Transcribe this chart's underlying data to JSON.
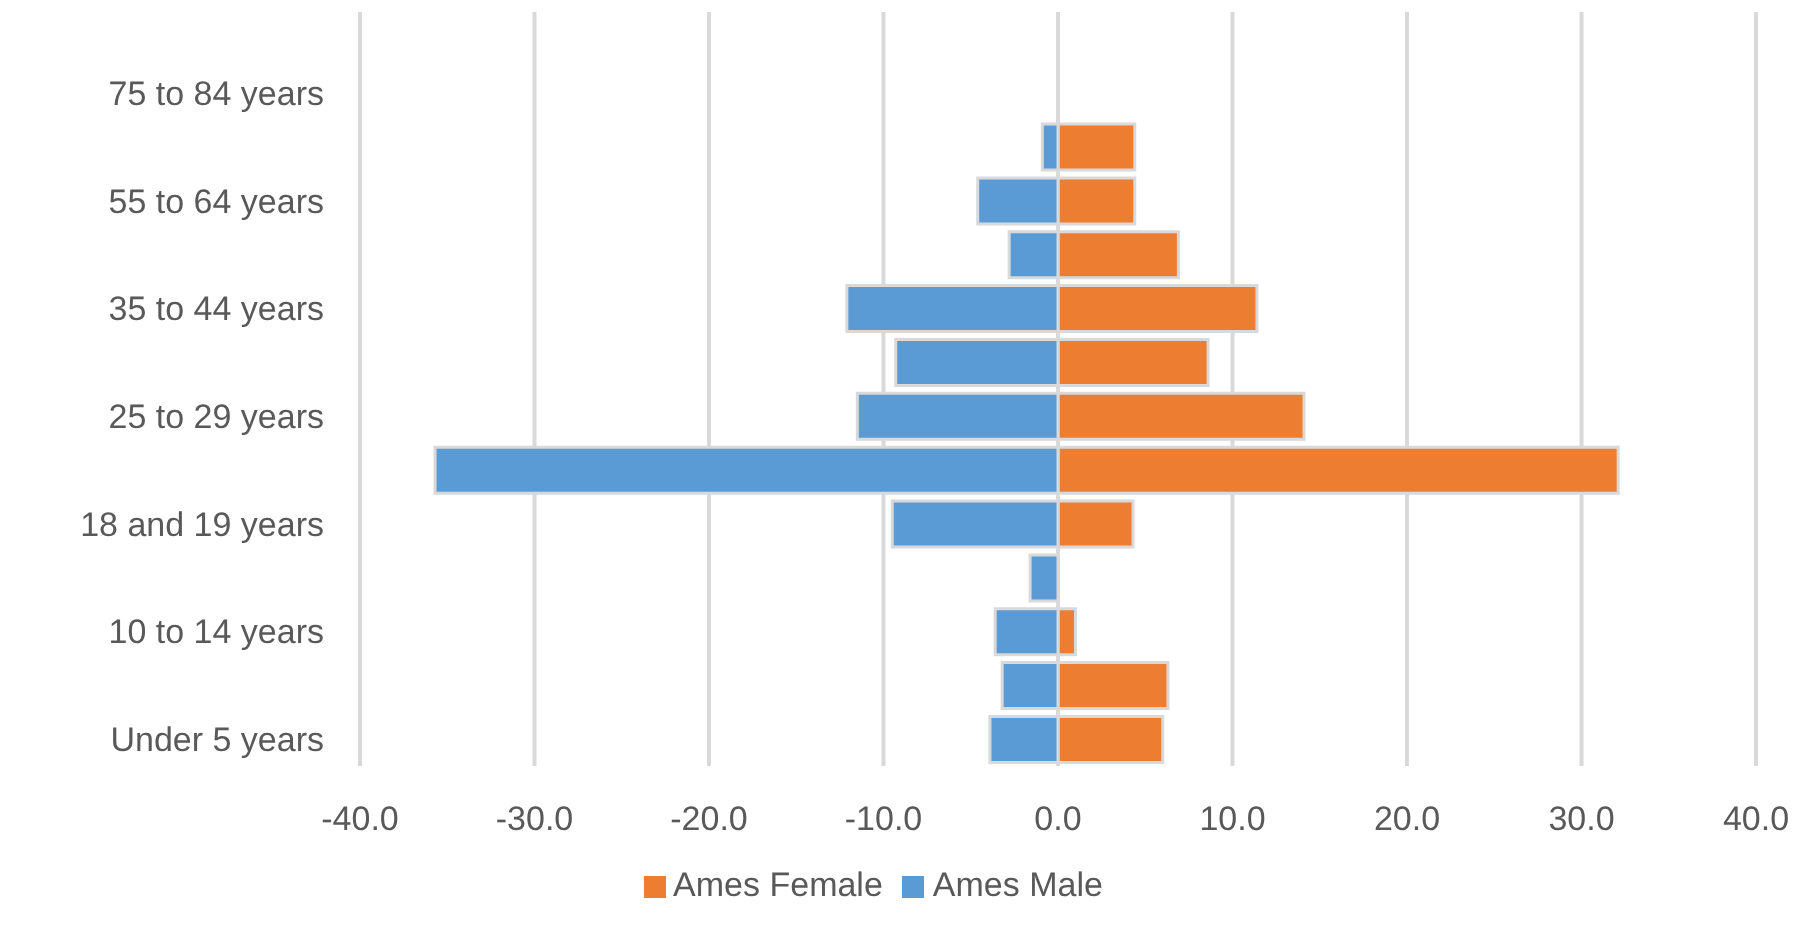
{
  "chart_data": {
    "type": "bar",
    "orientation": "horizontal",
    "stacked": true,
    "categories": [
      null,
      "75 to 84 years",
      null,
      "55 to 64 years",
      null,
      "35 to 44 years",
      null,
      "25 to 29 years",
      null,
      "18 and 19 years",
      null,
      "10 to 14 years",
      null,
      "Under 5 years"
    ],
    "series": [
      {
        "name": "Ames Female",
        "color": "#ed7d31",
        "values": [
          0,
          0,
          4.4,
          4.4,
          6.9,
          11.4,
          8.6,
          14.1,
          32.1,
          4.3,
          0,
          1.0,
          6.3,
          6.0
        ]
      },
      {
        "name": "Ames Male",
        "color": "#5b9bd5",
        "values": [
          0,
          0,
          -0.9,
          -4.6,
          -2.8,
          -12.1,
          -9.3,
          -11.5,
          -35.7,
          -9.5,
          -1.6,
          -3.6,
          -3.2,
          -3.9
        ]
      }
    ],
    "xlim": [
      -40,
      40
    ],
    "xticks": [
      {
        "value": -40,
        "label": "-40.0"
      },
      {
        "value": -30,
        "label": "-30.0"
      },
      {
        "value": -20,
        "label": "-20.0"
      },
      {
        "value": -10,
        "label": "-10.0"
      },
      {
        "value": 0,
        "label": "0.0"
      },
      {
        "value": 10,
        "label": "10.0"
      },
      {
        "value": 20,
        "label": "20.0"
      },
      {
        "value": 30,
        "label": "30.0"
      },
      {
        "value": 40,
        "label": "40.0"
      }
    ],
    "grid": "x",
    "legend": "bottom"
  }
}
